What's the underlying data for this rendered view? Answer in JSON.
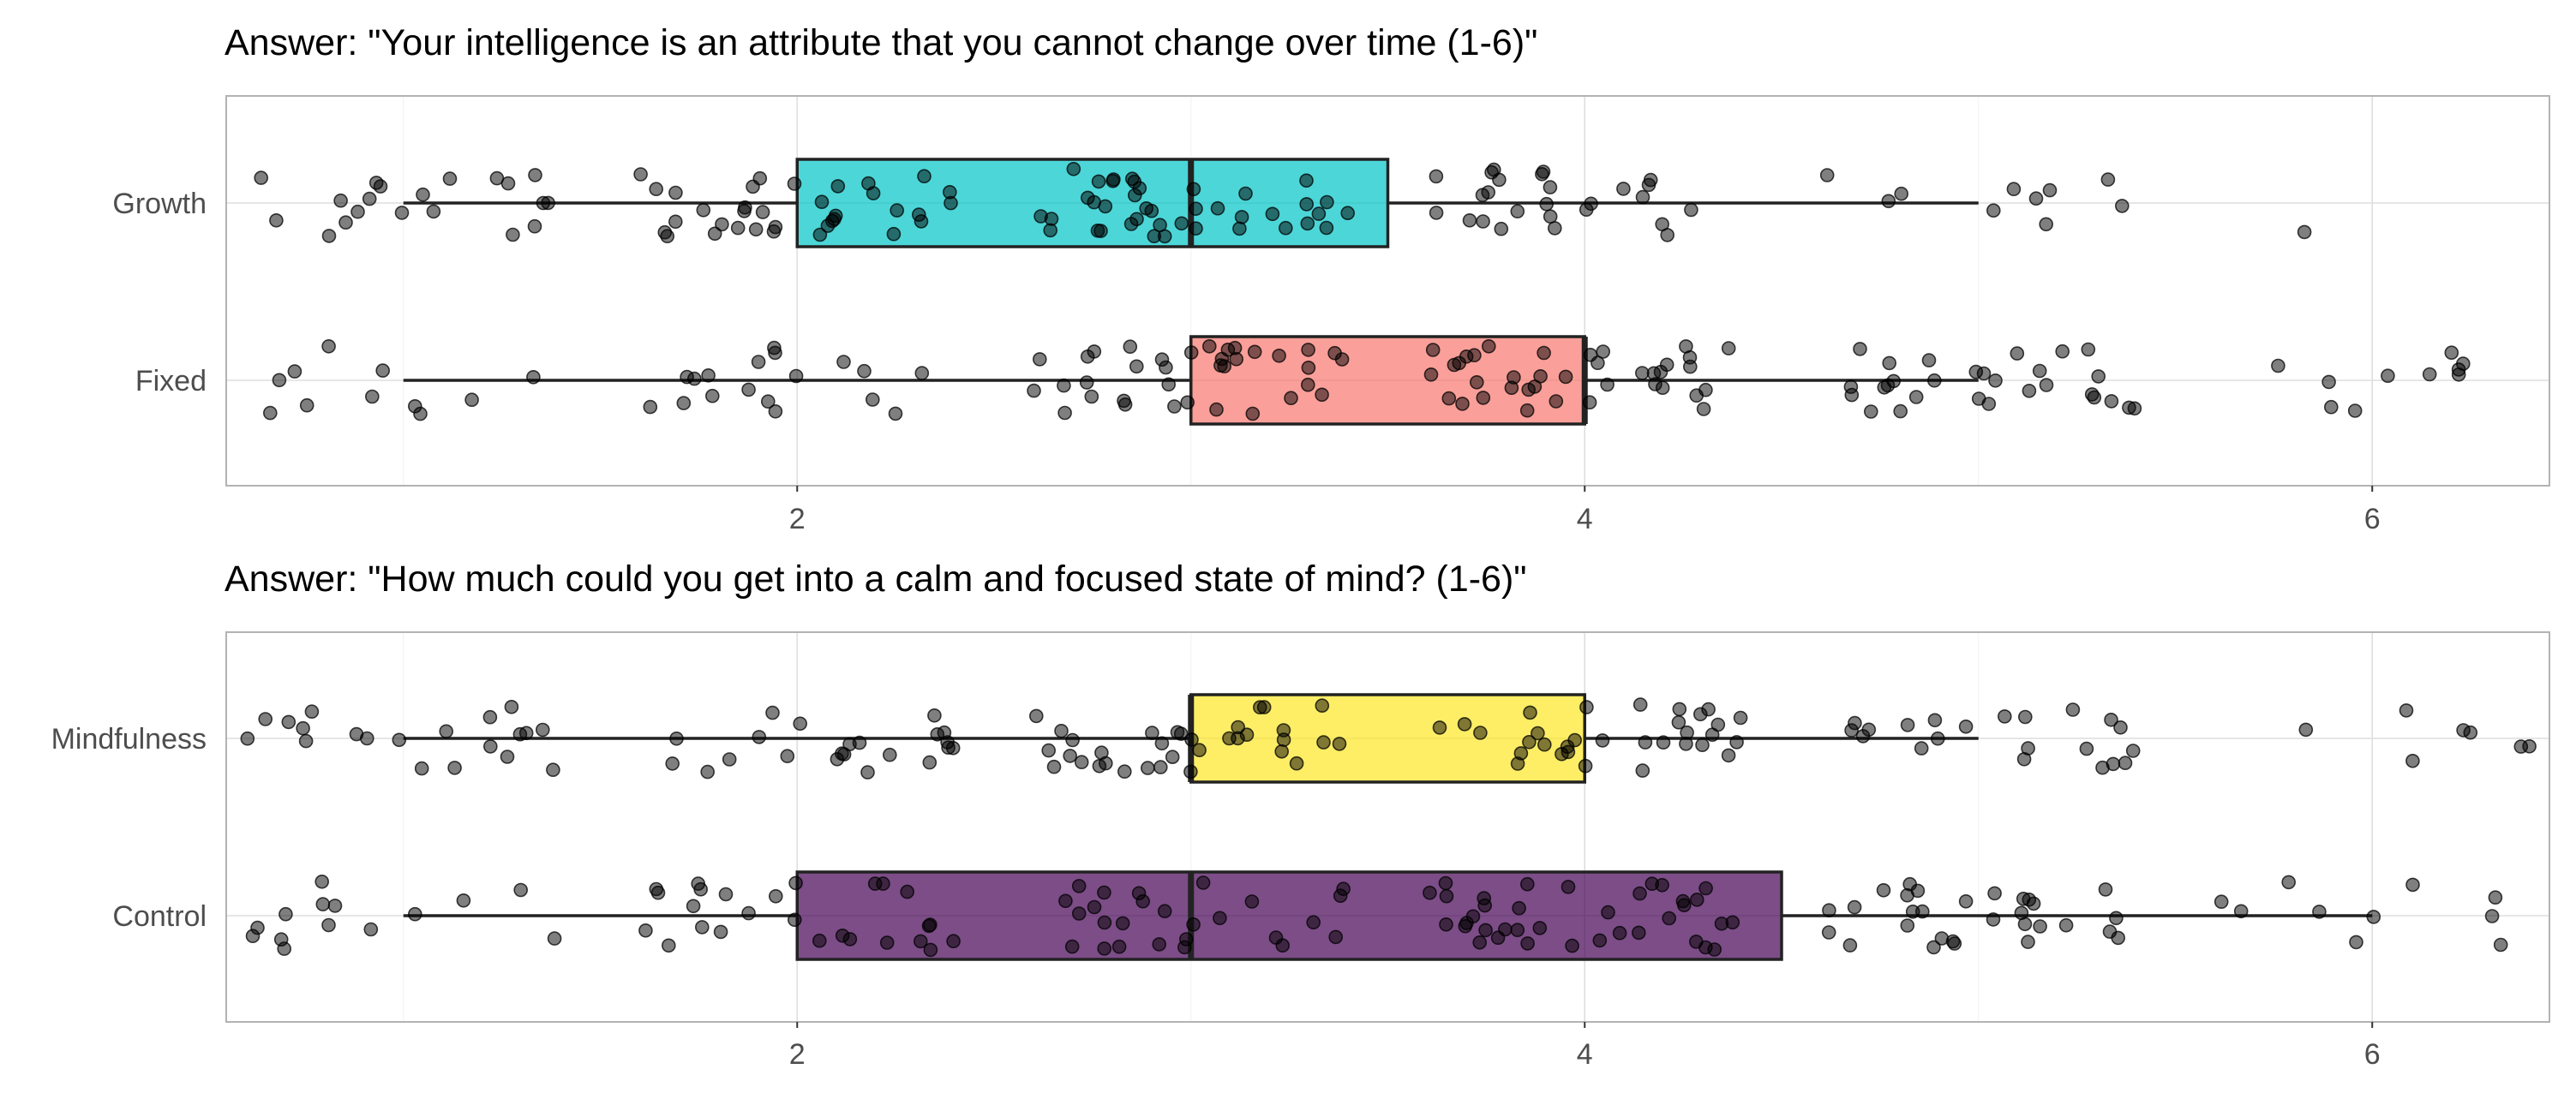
{
  "chart_data": [
    {
      "type": "boxplot",
      "title": "Answer: \"Your intelligence is an attribute that you cannot change over time (1-6)\"",
      "orientation": "horizontal",
      "xlim": [
        0.55,
        6.45
      ],
      "x_ticks": [
        2,
        4,
        6
      ],
      "x_tick_labels": [
        "2",
        "4",
        "6"
      ],
      "grid": true,
      "points": "jittered individual responses",
      "categories": [
        "Growth",
        "Fixed"
      ],
      "series": [
        {
          "name": "Growth",
          "color": "#00C5C7",
          "min": 1,
          "q1": 2,
          "median": 3,
          "q3": 3.5,
          "max": 5,
          "outliers": [
            6
          ],
          "responses": [
            1,
            1,
            1,
            1,
            1,
            1,
            1,
            1,
            1,
            1,
            1,
            1,
            1,
            1,
            1,
            1,
            1,
            1,
            1,
            1,
            2,
            2,
            2,
            2,
            2,
            2,
            2,
            2,
            2,
            2,
            2,
            2,
            2,
            2,
            2,
            2,
            2,
            2,
            2,
            2,
            2,
            2,
            2,
            2,
            2,
            2,
            2,
            2,
            2,
            2,
            2,
            2,
            2,
            2,
            2,
            3,
            3,
            3,
            3,
            3,
            3,
            3,
            3,
            3,
            3,
            3,
            3,
            3,
            3,
            3,
            3,
            3,
            3,
            3,
            3,
            3,
            3,
            3,
            3,
            3,
            3,
            3,
            3,
            3,
            3,
            3,
            3,
            3,
            3,
            3,
            3,
            3,
            3,
            3,
            3,
            4,
            4,
            4,
            4,
            4,
            4,
            4,
            4,
            4,
            4,
            4,
            4,
            4,
            4,
            4,
            4,
            4,
            4,
            4,
            4,
            4,
            4,
            4,
            4,
            4,
            4,
            5,
            5,
            5,
            5,
            5,
            5,
            5,
            5,
            5,
            5,
            6
          ]
        },
        {
          "name": "Fixed",
          "color": "#F8766D",
          "min": 1,
          "q1": 3,
          "median": 4,
          "q3": 4,
          "max": 5,
          "outliers": [
            6
          ],
          "responses": [
            1,
            1,
            1,
            1,
            1,
            1,
            1,
            1,
            1,
            1,
            1,
            2,
            2,
            2,
            2,
            2,
            2,
            2,
            2,
            2,
            2,
            2,
            2,
            2,
            2,
            2,
            2,
            2,
            2,
            3,
            3,
            3,
            3,
            3,
            3,
            3,
            3,
            3,
            3,
            3,
            3,
            3,
            3,
            3,
            3,
            3,
            3,
            3,
            3,
            3,
            3,
            3,
            3,
            3,
            3,
            3,
            3,
            3,
            3,
            3,
            3,
            3,
            3,
            3,
            3,
            4,
            4,
            4,
            4,
            4,
            4,
            4,
            4,
            4,
            4,
            4,
            4,
            4,
            4,
            4,
            4,
            4,
            4,
            4,
            4,
            4,
            4,
            4,
            4,
            4,
            4,
            4,
            4,
            4,
            4,
            4,
            4,
            4,
            4,
            4,
            4,
            4,
            4,
            5,
            5,
            5,
            5,
            5,
            5,
            5,
            5,
            5,
            5,
            5,
            5,
            5,
            5,
            5,
            5,
            5,
            5,
            5,
            5,
            5,
            5,
            5,
            5,
            5,
            5,
            5,
            5,
            5,
            6,
            6,
            6,
            6,
            6,
            6,
            6,
            6,
            6,
            6
          ]
        }
      ]
    },
    {
      "type": "boxplot",
      "title": "Answer: \"How much could you get into a calm and focused state of mind? (1-6)\"",
      "orientation": "horizontal",
      "xlim": [
        0.55,
        6.45
      ],
      "x_ticks": [
        2,
        4,
        6
      ],
      "x_tick_labels": [
        "2",
        "4",
        "6"
      ],
      "grid": true,
      "points": "jittered individual responses",
      "categories": [
        "Mindfulness",
        "Control"
      ],
      "series": [
        {
          "name": "Mindfulness",
          "color": "#FDE725",
          "min": 1,
          "q1": 3,
          "median": 3,
          "q3": 4,
          "max": 5,
          "outliers": [
            6
          ],
          "responses": [
            1,
            1,
            1,
            1,
            1,
            1,
            1,
            1,
            1,
            1,
            1,
            1,
            1,
            1,
            1,
            1,
            1,
            1,
            1,
            1,
            2,
            2,
            2,
            2,
            2,
            2,
            2,
            2,
            2,
            2,
            2,
            2,
            2,
            2,
            2,
            2,
            2,
            2,
            2,
            2,
            2,
            2,
            3,
            3,
            3,
            3,
            3,
            3,
            3,
            3,
            3,
            3,
            3,
            3,
            3,
            3,
            3,
            3,
            3,
            3,
            3,
            3,
            3,
            3,
            3,
            3,
            3,
            3,
            3,
            3,
            3,
            3,
            3,
            3,
            3,
            3,
            4,
            4,
            4,
            4,
            4,
            4,
            4,
            4,
            4,
            4,
            4,
            4,
            4,
            4,
            4,
            4,
            4,
            4,
            4,
            4,
            4,
            4,
            4,
            4,
            4,
            4,
            4,
            4,
            4,
            4,
            4,
            4,
            5,
            5,
            5,
            5,
            5,
            5,
            5,
            5,
            5,
            5,
            5,
            5,
            5,
            5,
            5,
            5,
            5,
            5,
            5,
            5,
            5,
            6,
            6,
            6,
            6,
            6,
            6,
            6
          ]
        },
        {
          "name": "Control",
          "color": "#440154",
          "min": 1,
          "q1": 2,
          "median": 3,
          "q3": 4.5,
          "max": 6,
          "outliers": [],
          "responses": [
            1,
            1,
            1,
            1,
            1,
            1,
            1,
            1,
            1,
            1,
            1,
            1,
            1,
            1,
            2,
            2,
            2,
            2,
            2,
            2,
            2,
            2,
            2,
            2,
            2,
            2,
            2,
            2,
            2,
            2,
            2,
            2,
            2,
            2,
            2,
            2,
            2,
            2,
            2,
            2,
            3,
            3,
            3,
            3,
            3,
            3,
            3,
            3,
            3,
            3,
            3,
            3,
            3,
            3,
            3,
            3,
            3,
            3,
            3,
            3,
            3,
            3,
            3,
            3,
            3,
            3,
            4,
            4,
            4,
            4,
            4,
            4,
            4,
            4,
            4,
            4,
            4,
            4,
            4,
            4,
            4,
            4,
            4,
            4,
            4,
            4,
            4,
            4,
            4,
            4,
            4,
            4,
            4,
            4,
            4,
            4,
            4,
            4,
            4,
            4,
            4,
            4,
            4,
            5,
            5,
            5,
            5,
            5,
            5,
            5,
            5,
            5,
            5,
            5,
            5,
            5,
            5,
            5,
            5,
            5,
            5,
            5,
            5,
            5,
            5,
            5,
            5,
            5,
            5,
            5,
            5,
            5,
            5,
            6,
            6,
            6,
            6,
            6,
            6,
            6,
            6,
            6,
            6
          ]
        }
      ]
    }
  ]
}
